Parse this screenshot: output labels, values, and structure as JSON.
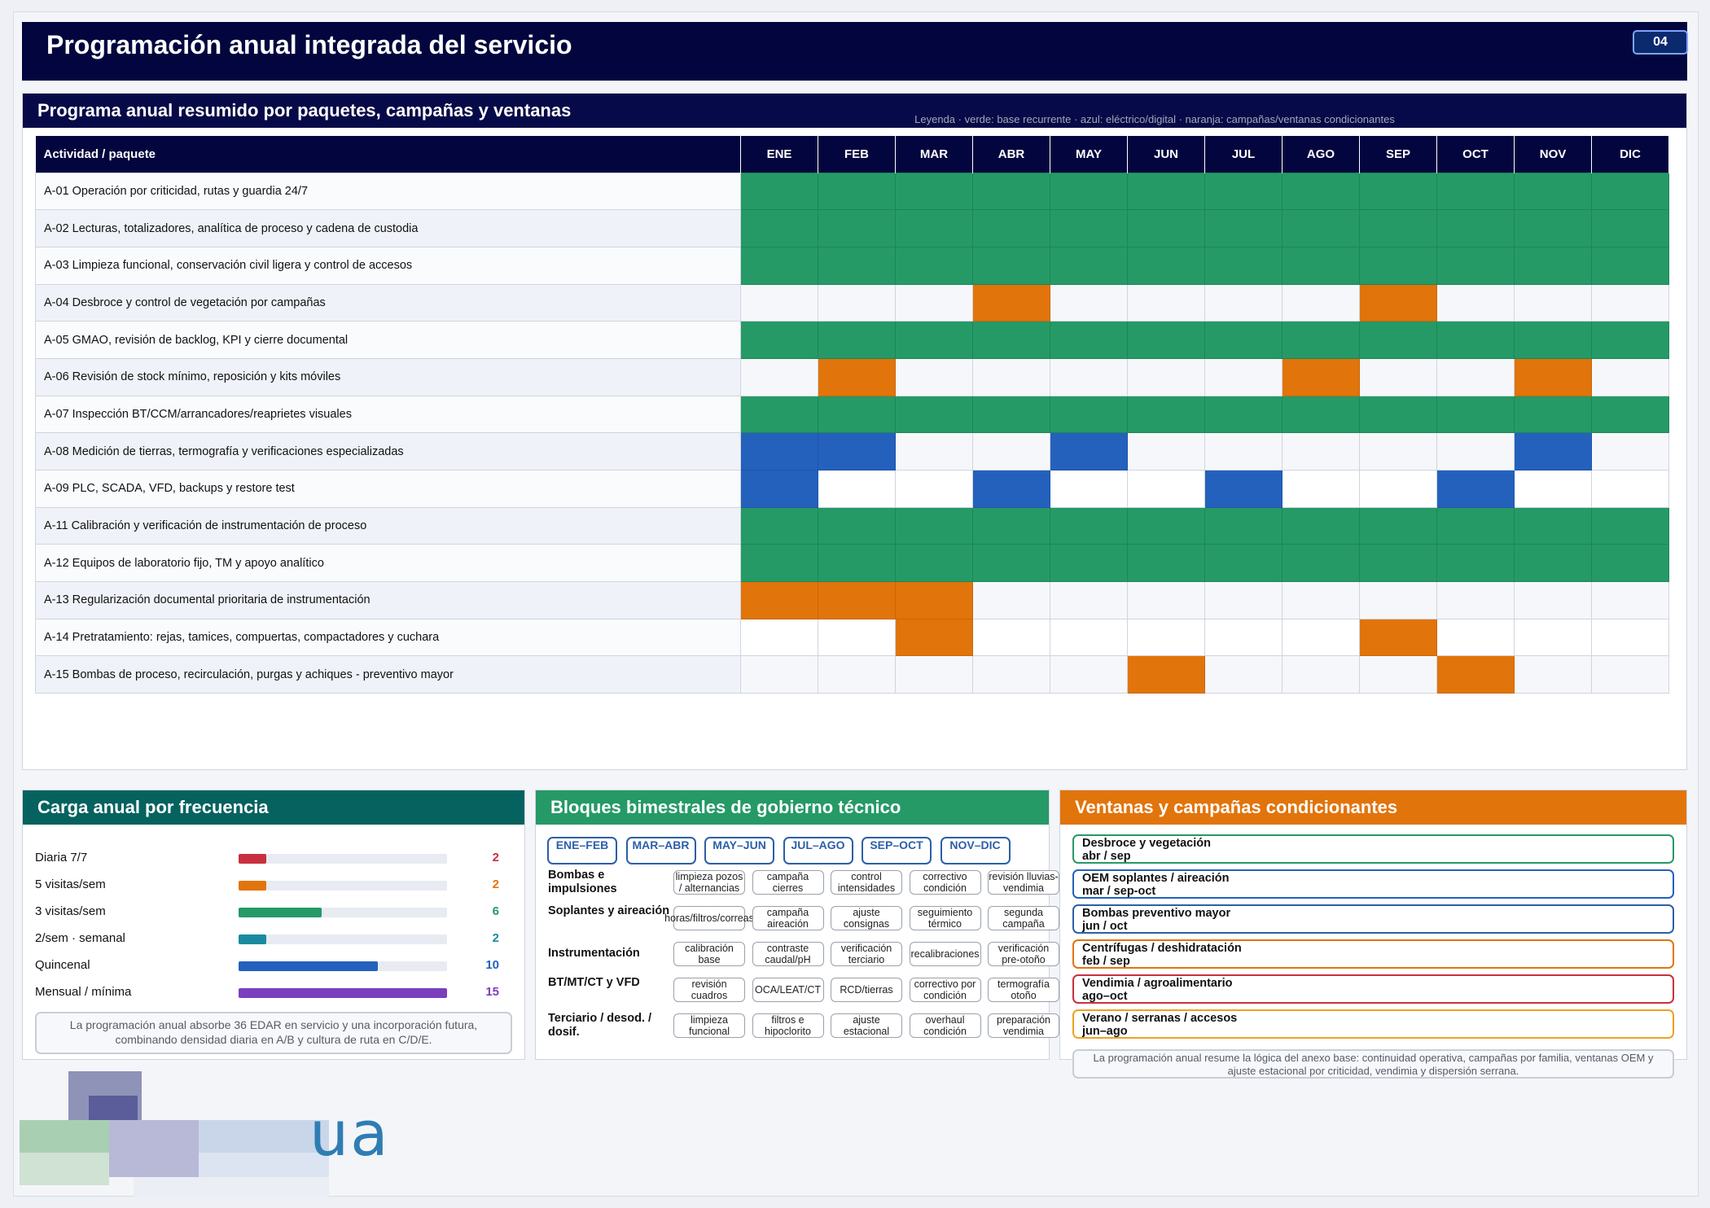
{
  "header": {
    "title": "Programación anual integrada del servicio",
    "page_number": "04"
  },
  "annual_program": {
    "title": "Programa anual resumido por paquetes, campañas y ventanas",
    "legend": "Leyenda · verde: base recurrente · azul: eléctrico/digital · naranja: campañas/ventanas condicionantes",
    "activity_header": "Actividad / paquete",
    "months": [
      "ENE",
      "FEB",
      "MAR",
      "ABR",
      "MAY",
      "JUN",
      "JUL",
      "AGO",
      "SEP",
      "OCT",
      "NOV",
      "DIC"
    ],
    "colors": {
      "g": "#259a66",
      "b": "#2461bd",
      "o": "#e1740a"
    },
    "rows": [
      {
        "label": "A-01  Operación por criticidad, rutas y guardia 24/7",
        "cells": [
          "g",
          "g",
          "g",
          "g",
          "g",
          "g",
          "g",
          "g",
          "g",
          "g",
          "g",
          "g"
        ]
      },
      {
        "label": "A-02  Lecturas, totalizadores, analítica de proceso y cadena de custodia",
        "cells": [
          "g",
          "g",
          "g",
          "g",
          "g",
          "g",
          "g",
          "g",
          "g",
          "g",
          "g",
          "g"
        ]
      },
      {
        "label": "A-03  Limpieza funcional, conservación civil ligera y control de accesos",
        "cells": [
          "g",
          "g",
          "g",
          "g",
          "g",
          "g",
          "g",
          "g",
          "g",
          "g",
          "g",
          "g"
        ]
      },
      {
        "label": "A-04  Desbroce y control de vegetación por campañas",
        "cells": [
          "",
          "",
          "",
          "o",
          "",
          "",
          "",
          "",
          "o",
          "",
          "",
          ""
        ]
      },
      {
        "label": "A-05  GMAO, revisión de backlog, KPI y cierre documental",
        "cells": [
          "g",
          "g",
          "g",
          "g",
          "g",
          "g",
          "g",
          "g",
          "g",
          "g",
          "g",
          "g"
        ]
      },
      {
        "label": "A-06  Revisión de stock mínimo, reposición y kits móviles",
        "cells": [
          "",
          "o",
          "",
          "",
          "",
          "",
          "",
          "o",
          "",
          "",
          "o",
          ""
        ]
      },
      {
        "label": "A-07  Inspección BT/CCM/arrancadores/reaprietes visuales",
        "cells": [
          "g",
          "g",
          "g",
          "g",
          "g",
          "g",
          "g",
          "g",
          "g",
          "g",
          "g",
          "g"
        ]
      },
      {
        "label": "A-08  Medición de tierras, termografía y verificaciones especializadas",
        "cells": [
          "b",
          "b",
          "",
          "",
          "b",
          "",
          "",
          "",
          "",
          "",
          "b",
          ""
        ]
      },
      {
        "label": "A-09  PLC, SCADA, VFD, backups y restore test",
        "cells": [
          "b",
          "",
          "",
          "b",
          "",
          "",
          "b",
          "",
          "",
          "b",
          "",
          ""
        ]
      },
      {
        "label": "A-11  Calibración y verificación de instrumentación de proceso",
        "cells": [
          "g",
          "g",
          "g",
          "g",
          "g",
          "g",
          "g",
          "g",
          "g",
          "g",
          "g",
          "g"
        ]
      },
      {
        "label": "A-12  Equipos de laboratorio fijo, TM y apoyo analítico",
        "cells": [
          "g",
          "g",
          "g",
          "g",
          "g",
          "g",
          "g",
          "g",
          "g",
          "g",
          "g",
          "g"
        ]
      },
      {
        "label": "A-13  Regularización documental prioritaria de instrumentación",
        "cells": [
          "o",
          "o",
          "o",
          "",
          "",
          "",
          "",
          "",
          "",
          "",
          "",
          ""
        ]
      },
      {
        "label": "A-14  Pretratamiento: rejas, tamices, compuertas, compactadores y cuchara",
        "cells": [
          "",
          "",
          "o",
          "",
          "",
          "",
          "",
          "",
          "o",
          "",
          "",
          ""
        ]
      },
      {
        "label": "A-15  Bombas de proceso, recirculación, purgas y achiques - preventivo mayor",
        "cells": [
          "",
          "",
          "",
          "",
          "",
          "o",
          "",
          "",
          "",
          "o",
          "",
          ""
        ]
      }
    ]
  },
  "frequency": {
    "title": "Carga anual por frecuencia",
    "max": 15,
    "items": [
      {
        "label": "Diaria 7/7",
        "value": 2,
        "color": "#c8303f"
      },
      {
        "label": "5 visitas/sem",
        "value": 2,
        "color": "#e2740c"
      },
      {
        "label": "3 visitas/sem",
        "value": 6,
        "color": "#259a66"
      },
      {
        "label": "2/sem · semanal",
        "value": 2,
        "color": "#1a8aa0"
      },
      {
        "label": "Quincenal",
        "value": 10,
        "color": "#2461bd"
      },
      {
        "label": "Mensual / mínima",
        "value": 15,
        "color": "#7b3fbe"
      }
    ],
    "note": "La programación anual absorbe 36 EDAR en servicio y una incorporación futura, combinando densidad diaria en A/B y cultura de ruta en C/D/E."
  },
  "bimonthly": {
    "title": "Bloques bimestrales de gobierno técnico",
    "periods": [
      "ENE–FEB",
      "MAR–ABR",
      "MAY–JUN",
      "JUL–AGO",
      "SEP–OCT",
      "NOV–DIC"
    ],
    "rows": [
      {
        "label": "Bombas e impulsiones",
        "chips": [
          "limpieza pozos / alternancias",
          "campaña cierres",
          "control intensidades",
          "correctivo condición",
          "revisión lluvias-vendimia"
        ]
      },
      {
        "label": "Soplantes y aireación",
        "chips": [
          "horas/filtros/correas",
          "campaña aireación",
          "ajuste consignas",
          "seguimiento térmico",
          "segunda campaña"
        ]
      },
      {
        "label": "Instrumentación",
        "chips": [
          "calibración base",
          "contraste caudal/pH",
          "verificación terciario",
          "recalibraciones",
          "verificación pre-otoño"
        ]
      },
      {
        "label": "BT/MT/CT y VFD",
        "chips": [
          "revisión cuadros",
          "OCA/LEAT/CT",
          "RCD/tierras",
          "correctivo por condición",
          "termografía otoño"
        ]
      },
      {
        "label": "Terciario / desod. / dosif.",
        "chips": [
          "limpieza funcional",
          "filtros e hipoclorito",
          "ajuste estacional",
          "overhaul condición",
          "preparación vendimia"
        ]
      }
    ]
  },
  "windows": {
    "title": "Ventanas y campañas condicionantes",
    "items": [
      {
        "name": "Desbroce y vegetación",
        "period": "abr / sep",
        "color": "#259a66"
      },
      {
        "name": "OEM soplantes / aireación",
        "period": "mar / sep-oct",
        "color": "#2461bd"
      },
      {
        "name": "Bombas preventivo mayor",
        "period": "jun / oct",
        "color": "#2c5fa8"
      },
      {
        "name": "Centrífugas / deshidratación",
        "period": "feb / sep",
        "color": "#e2740c"
      },
      {
        "name": "Vendimia / agroalimentario",
        "period": "ago–oct",
        "color": "#c8303f"
      },
      {
        "name": "Verano / serranas / accesos",
        "period": "jun–ago",
        "color": "#f0a020"
      }
    ],
    "note": "La programación anual resume la lógica del anexo base: continuidad operativa, campañas por familia, ventanas OEM y ajuste estacional por criticidad, vendimia y dispersión serrana."
  },
  "footer": {
    "logo_text": "ua"
  }
}
